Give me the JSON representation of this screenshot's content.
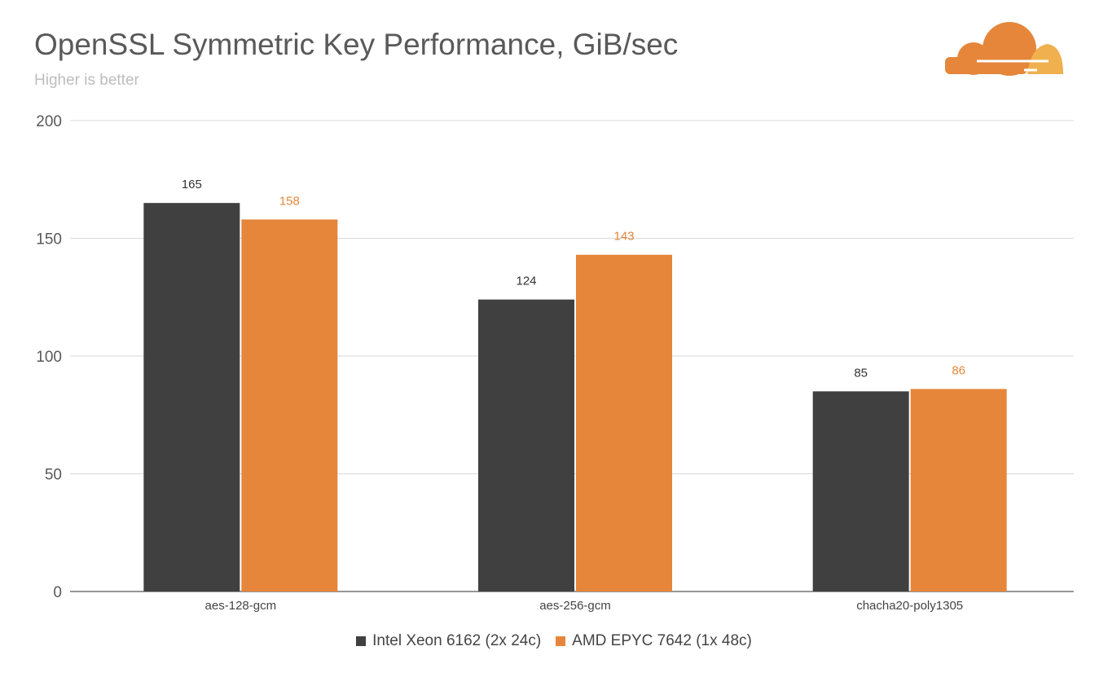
{
  "title": "OpenSSL Symmetric Key Performance, GiB/sec",
  "subtitle": "Higher is better",
  "logo": "cloudflare-cloud-logo",
  "colors": {
    "intel": "#404040",
    "amd": "#e5863a",
    "grid": "#d9d9d9",
    "axis": "#595959"
  },
  "chart_data": {
    "type": "bar",
    "title": "OpenSSL Symmetric Key Performance, GiB/sec",
    "subtitle": "Higher is better",
    "categories": [
      "aes-128-gcm",
      "aes-256-gcm",
      "chacha20-poly1305"
    ],
    "series": [
      {
        "name": "Intel Xeon 6162 (2x 24c)",
        "values": [
          165,
          124,
          85
        ],
        "color": "#404040"
      },
      {
        "name": "AMD EPYC 7642 (1x 48c)",
        "values": [
          158,
          143,
          86
        ],
        "color": "#e5863a"
      }
    ],
    "ylim": [
      0,
      200
    ],
    "yticks": [
      0,
      50,
      100,
      150,
      200
    ],
    "grid": true,
    "legend": "bottom",
    "data_labels": true
  }
}
